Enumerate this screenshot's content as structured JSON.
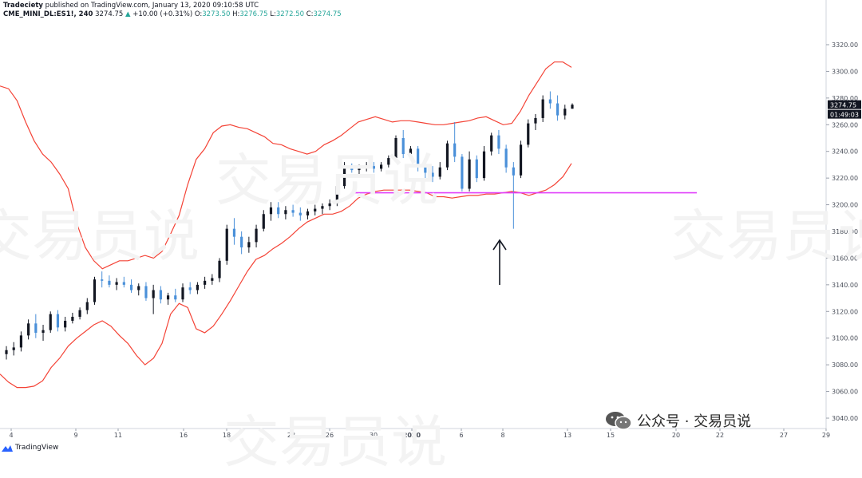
{
  "header": {
    "publisher": "Tradeciety",
    "published_text": "published on TradingView.com, January 13, 2020 09:10:58 UTC",
    "symbol": "CME_MINI_DL:ES1!, 240",
    "last": "3274.75",
    "change": "+10.00 (+0.31%)",
    "open_label": "O:",
    "open": "3273.50",
    "high_label": "H:",
    "high": "3276.75",
    "low_label": "L:",
    "low": "3272.50",
    "close_label": "C:",
    "close": "3274.75"
  },
  "price_axis": {
    "last_price_tag": "3274.75",
    "countdown_tag": "01:49:03"
  },
  "branding": {
    "tradingview": "TradingView",
    "wechat_account": "公众号 · 交易员说",
    "watermark": "交易员说"
  },
  "colors": {
    "bollinger": "#f44336",
    "support_line": "#e040fb",
    "candle_up": "#131722",
    "candle_down": "#4a90d9",
    "arrow": "#131722"
  },
  "chart_data": {
    "type": "candlestick",
    "symbol": "CME_MINI_DL:ES1!",
    "timeframe": "240",
    "ylim": [
      3030,
      3330
    ],
    "y_ticks": [
      3040,
      3060,
      3080,
      3100,
      3120,
      3140,
      3160,
      3180,
      3200,
      3220,
      3240,
      3260,
      3280,
      3300,
      3320
    ],
    "x_ticks": [
      "4",
      "9",
      "11",
      "16",
      "18",
      "23",
      "26",
      "30",
      "2020",
      "6",
      "8",
      "13",
      "15",
      "20",
      "22",
      "27",
      "29"
    ],
    "support_level": 3209,
    "annotation": "arrow pointing up at the long lower wick on the 8th",
    "indicators": [
      "Bollinger Bands upper",
      "Bollinger Bands lower"
    ],
    "bb_upper": [
      3289,
      3287,
      3278,
      3262,
      3248,
      3238,
      3232,
      3223,
      3212,
      3186,
      3168,
      3158,
      3152,
      3155,
      3158,
      3158,
      3160,
      3162,
      3160,
      3165,
      3178,
      3192,
      3215,
      3234,
      3242,
      3254,
      3259,
      3260,
      3258,
      3257,
      3254,
      3251,
      3246,
      3245,
      3242,
      3240,
      3238,
      3240,
      3245,
      3248,
      3252,
      3257,
      3262,
      3264,
      3266,
      3264,
      3262,
      3263,
      3263,
      3262,
      3261,
      3260,
      3260,
      3261,
      3262,
      3263,
      3265,
      3266,
      3263,
      3260,
      3261,
      3270,
      3282,
      3292,
      3302,
      3307,
      3307,
      3303
    ],
    "bb_lower": [
      3073,
      3067,
      3063,
      3063,
      3064,
      3068,
      3078,
      3085,
      3094,
      3100,
      3105,
      3110,
      3113,
      3109,
      3102,
      3096,
      3087,
      3080,
      3085,
      3096,
      3118,
      3126,
      3123,
      3107,
      3104,
      3109,
      3118,
      3128,
      3139,
      3150,
      3159,
      3162,
      3167,
      3171,
      3176,
      3182,
      3187,
      3190,
      3193,
      3193,
      3195,
      3199,
      3205,
      3208,
      3210,
      3211,
      3211,
      3211,
      3211,
      3210,
      3209,
      3206,
      3206,
      3205,
      3206,
      3207,
      3207,
      3208,
      3208,
      3209,
      3210,
      3209,
      3207,
      3209,
      3211,
      3215,
      3221,
      3231
    ],
    "candles": [
      [
        3088,
        3094,
        3084,
        3091
      ],
      [
        3091,
        3097,
        3087,
        3093
      ],
      [
        3093,
        3105,
        3090,
        3102
      ],
      [
        3102,
        3114,
        3099,
        3111
      ],
      [
        3111,
        3118,
        3100,
        3104
      ],
      [
        3104,
        3110,
        3098,
        3106
      ],
      [
        3106,
        3120,
        3104,
        3118
      ],
      [
        3118,
        3121,
        3105,
        3108
      ],
      [
        3108,
        3116,
        3105,
        3113
      ],
      [
        3113,
        3119,
        3111,
        3116
      ],
      [
        3116,
        3123,
        3114,
        3121
      ],
      [
        3121,
        3130,
        3118,
        3127
      ],
      [
        3127,
        3146,
        3125,
        3144
      ],
      [
        3144,
        3150,
        3138,
        3143
      ],
      [
        3143,
        3147,
        3138,
        3140
      ],
      [
        3140,
        3145,
        3136,
        3142
      ],
      [
        3142,
        3146,
        3138,
        3140
      ],
      [
        3140,
        3144,
        3134,
        3136
      ],
      [
        3136,
        3141,
        3132,
        3139
      ],
      [
        3139,
        3142,
        3128,
        3130
      ],
      [
        3130,
        3140,
        3118,
        3136
      ],
      [
        3136,
        3139,
        3126,
        3129
      ],
      [
        3129,
        3134,
        3125,
        3132
      ],
      [
        3132,
        3137,
        3127,
        3129
      ],
      [
        3129,
        3141,
        3127,
        3138
      ],
      [
        3138,
        3142,
        3133,
        3136
      ],
      [
        3136,
        3142,
        3133,
        3140
      ],
      [
        3140,
        3146,
        3137,
        3143
      ],
      [
        3143,
        3148,
        3140,
        3145
      ],
      [
        3145,
        3160,
        3142,
        3158
      ],
      [
        3158,
        3185,
        3155,
        3182
      ],
      [
        3182,
        3190,
        3170,
        3176
      ],
      [
        3176,
        3180,
        3163,
        3168
      ],
      [
        3168,
        3176,
        3164,
        3172
      ],
      [
        3172,
        3185,
        3168,
        3182
      ],
      [
        3182,
        3196,
        3180,
        3193
      ],
      [
        3193,
        3202,
        3188,
        3198
      ],
      [
        3198,
        3202,
        3190,
        3193
      ],
      [
        3193,
        3199,
        3189,
        3196
      ],
      [
        3196,
        3200,
        3191,
        3194
      ],
      [
        3194,
        3198,
        3188,
        3192
      ],
      [
        3192,
        3197,
        3189,
        3195
      ],
      [
        3195,
        3200,
        3192,
        3197
      ],
      [
        3197,
        3201,
        3193,
        3199
      ],
      [
        3199,
        3204,
        3196,
        3201
      ],
      [
        3201,
        3216,
        3199,
        3214
      ],
      [
        3214,
        3232,
        3212,
        3228
      ],
      [
        3228,
        3231,
        3224,
        3226
      ],
      [
        3226,
        3230,
        3223,
        3228
      ],
      [
        3228,
        3232,
        3225,
        3229
      ],
      [
        3229,
        3232,
        3224,
        3227
      ],
      [
        3227,
        3232,
        3225,
        3230
      ],
      [
        3230,
        3237,
        3228,
        3235
      ],
      [
        3235,
        3252,
        3233,
        3250
      ],
      [
        3250,
        3256,
        3235,
        3238
      ],
      [
        3238,
        3244,
        3236,
        3242
      ],
      [
        3242,
        3244,
        3225,
        3228
      ],
      [
        3228,
        3234,
        3220,
        3224
      ],
      [
        3224,
        3229,
        3217,
        3221
      ],
      [
        3221,
        3232,
        3219,
        3228
      ],
      [
        3228,
        3248,
        3226,
        3246
      ],
      [
        3246,
        3262,
        3232,
        3236
      ],
      [
        3236,
        3238,
        3210,
        3212
      ],
      [
        3212,
        3240,
        3210,
        3234
      ],
      [
        3234,
        3237,
        3217,
        3220
      ],
      [
        3220,
        3244,
        3218,
        3240
      ],
      [
        3240,
        3254,
        3237,
        3252
      ],
      [
        3252,
        3256,
        3238,
        3242
      ],
      [
        3242,
        3245,
        3224,
        3228
      ],
      [
        3228,
        3232,
        3182,
        3222
      ],
      [
        3222,
        3248,
        3220,
        3245
      ],
      [
        3245,
        3264,
        3243,
        3261
      ],
      [
        3261,
        3268,
        3256,
        3265
      ],
      [
        3265,
        3282,
        3262,
        3279
      ],
      [
        3279,
        3285,
        3272,
        3276
      ],
      [
        3276,
        3282,
        3263,
        3267
      ],
      [
        3267,
        3275,
        3264,
        3272
      ],
      [
        3272,
        3276,
        3272,
        3275
      ]
    ]
  }
}
